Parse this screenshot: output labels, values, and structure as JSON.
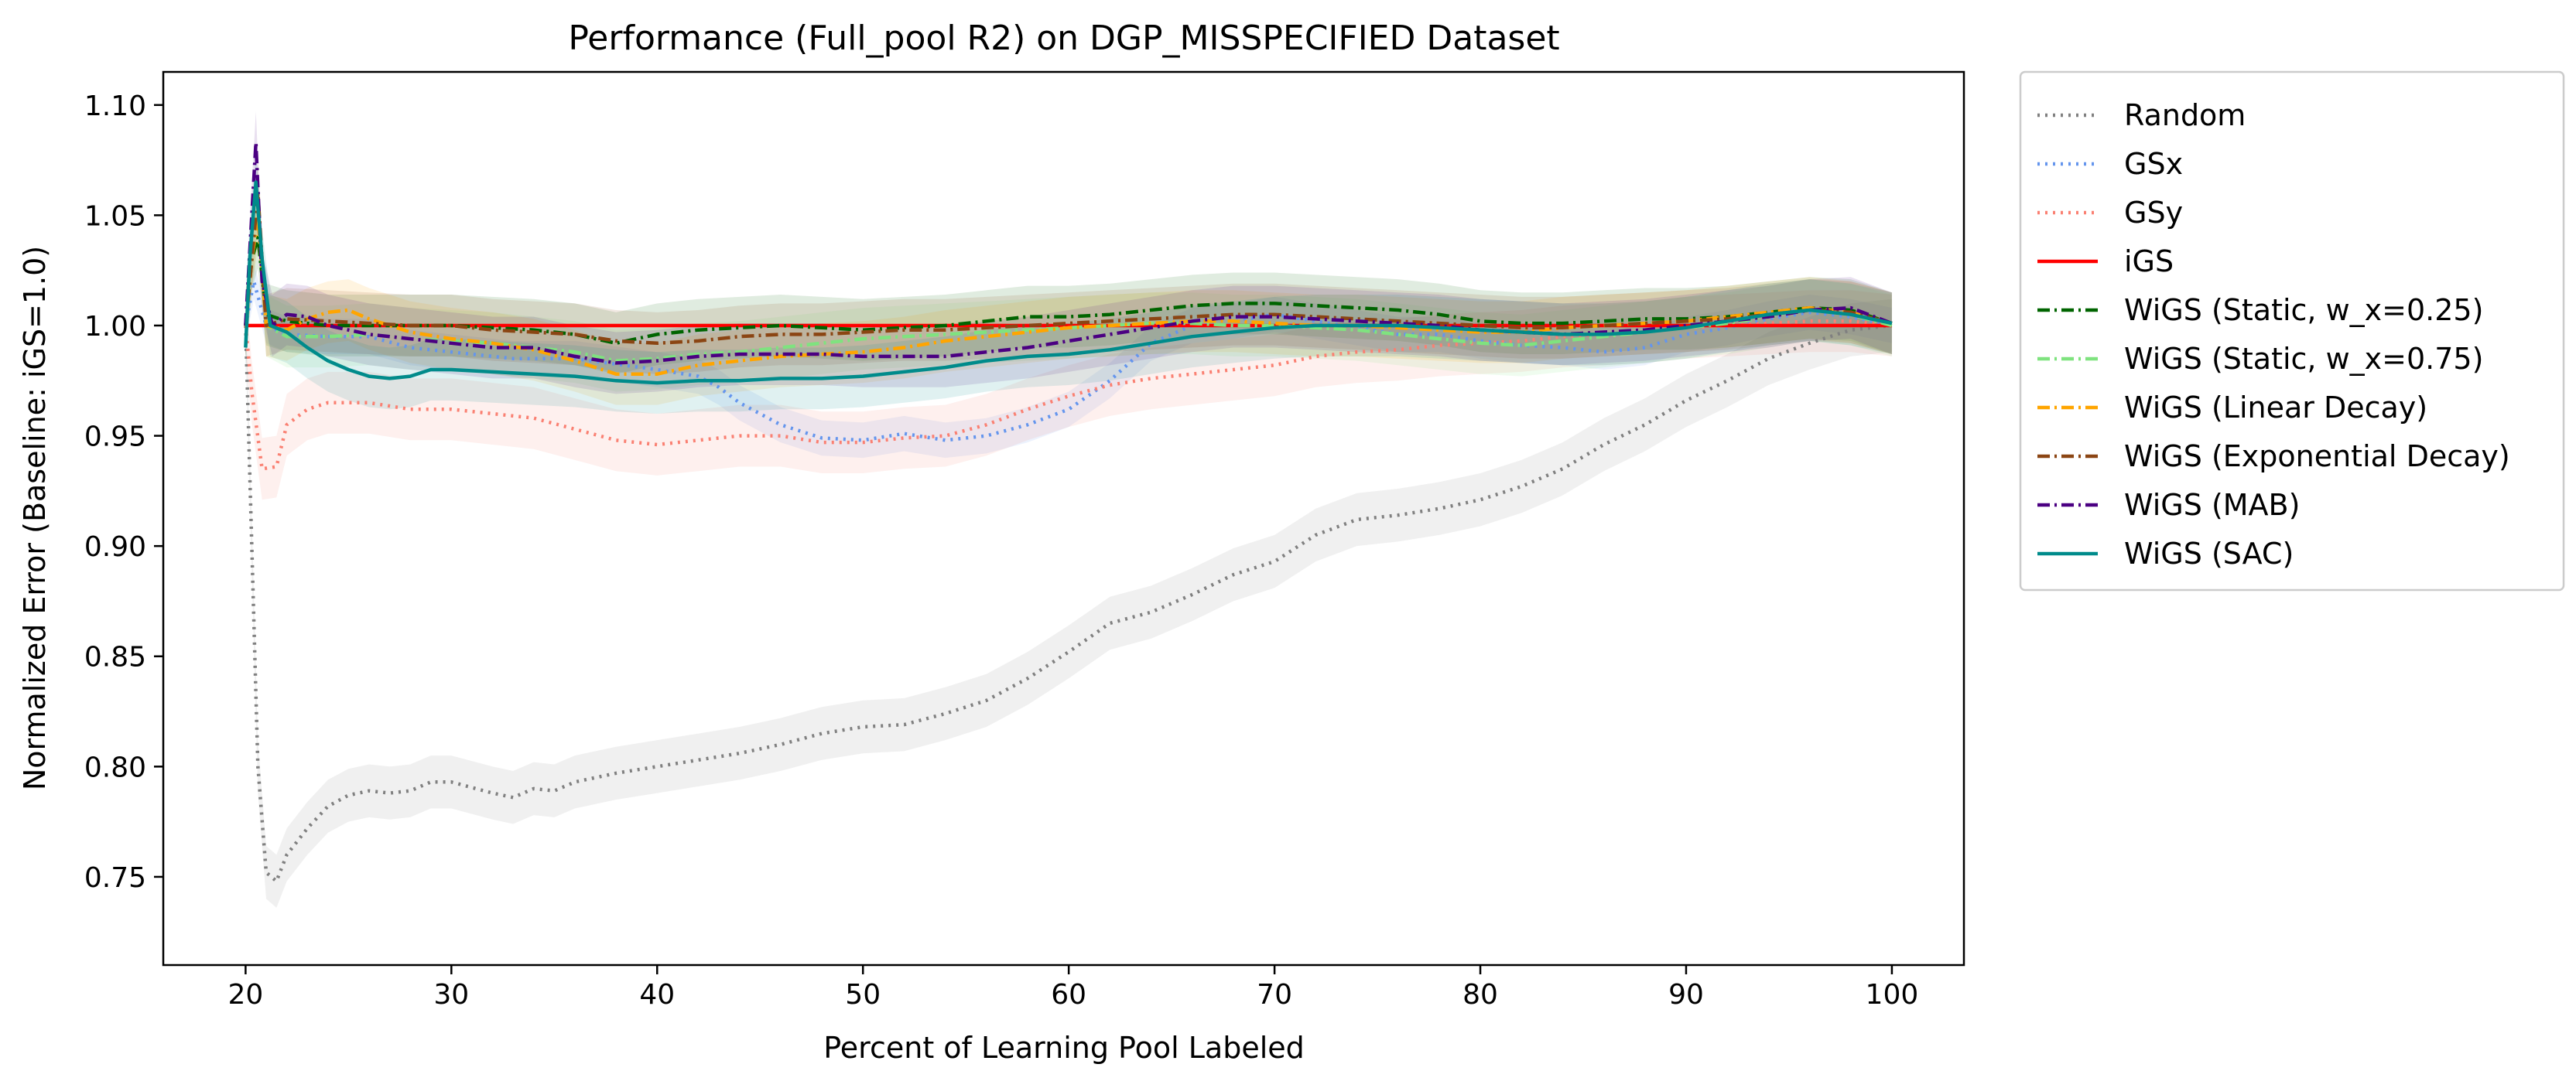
{
  "chart_data": {
    "type": "line",
    "title": "Performance (Full_pool R2) on DGP_MISSPECIFIED Dataset",
    "xlabel": "Percent of Learning Pool Labeled",
    "ylabel": "Normalized Error (Baseline: iGS=1.0)",
    "xlim": [
      16,
      103.5
    ],
    "ylim": [
      0.71,
      1.115
    ],
    "xticks": [
      20,
      30,
      40,
      50,
      60,
      70,
      80,
      90,
      100
    ],
    "xtick_labels": [
      "20",
      "30",
      "40",
      "50",
      "60",
      "70",
      "80",
      "90",
      "100"
    ],
    "yticks": [
      0.75,
      0.8,
      0.85,
      0.9,
      0.95,
      1.0,
      1.05,
      1.1
    ],
    "ytick_labels": [
      "0.75",
      "0.80",
      "0.85",
      "0.90",
      "0.95",
      "1.00",
      "1.05",
      "1.10"
    ],
    "grid": false,
    "legend_position": "outside-right-top",
    "series": [
      {
        "name": "Random",
        "color": "#808080",
        "style": "dotted",
        "band": 0.012,
        "x": [
          20,
          20.3,
          20.6,
          21,
          21.5,
          22,
          23,
          24,
          25,
          26,
          27,
          28,
          29,
          30,
          32,
          33,
          34,
          35,
          36,
          38,
          40,
          42,
          44,
          46,
          48,
          50,
          52,
          54,
          56,
          58,
          60,
          62,
          64,
          66,
          68,
          70,
          72,
          74,
          76,
          78,
          80,
          82,
          84,
          86,
          88,
          90,
          92,
          94,
          96,
          98,
          100
        ],
        "y": [
          1.0,
          0.9,
          0.8,
          0.752,
          0.748,
          0.76,
          0.772,
          0.782,
          0.787,
          0.789,
          0.788,
          0.789,
          0.793,
          0.793,
          0.788,
          0.786,
          0.79,
          0.789,
          0.793,
          0.797,
          0.8,
          0.803,
          0.806,
          0.81,
          0.815,
          0.818,
          0.819,
          0.824,
          0.83,
          0.84,
          0.852,
          0.865,
          0.87,
          0.878,
          0.887,
          0.893,
          0.905,
          0.912,
          0.914,
          0.917,
          0.921,
          0.927,
          0.935,
          0.946,
          0.955,
          0.966,
          0.975,
          0.985,
          0.992,
          0.998,
          1.0
        ]
      },
      {
        "name": "GSx",
        "color": "#6495ed",
        "style": "dotted",
        "band": 0.008,
        "x": [
          20,
          20.4,
          21,
          22,
          24,
          26,
          28,
          30,
          33,
          36,
          40,
          42,
          43,
          44,
          46,
          48,
          50,
          52,
          54,
          56,
          58,
          60,
          62,
          64,
          66,
          68,
          70,
          72,
          74,
          76,
          78,
          80,
          82,
          84,
          86,
          88,
          90,
          92,
          94,
          96,
          98,
          100
        ],
        "y": [
          1.0,
          1.02,
          1.0,
          0.996,
          0.995,
          0.995,
          0.99,
          0.988,
          0.985,
          0.985,
          0.98,
          0.977,
          0.972,
          0.965,
          0.955,
          0.949,
          0.948,
          0.951,
          0.948,
          0.95,
          0.955,
          0.962,
          0.975,
          0.992,
          1.0,
          1.002,
          1.005,
          1.002,
          0.999,
          0.996,
          0.996,
          0.993,
          0.991,
          0.99,
          0.988,
          0.99,
          0.996,
          0.999,
          1.003,
          1.006,
          1.004,
          1.0
        ]
      },
      {
        "name": "GSy",
        "color": "#fa8072",
        "style": "dotted",
        "band": 0.014,
        "x": [
          20,
          20.3,
          20.8,
          21.5,
          22,
          23,
          24,
          26,
          28,
          30,
          32,
          34,
          36,
          38,
          40,
          42,
          44,
          46,
          48,
          50,
          52,
          54,
          56,
          58,
          60,
          62,
          64,
          66,
          68,
          70,
          72,
          74,
          76,
          78,
          80,
          82,
          84,
          86,
          88,
          90,
          92,
          94,
          96,
          98,
          100
        ],
        "y": [
          1.0,
          0.97,
          0.935,
          0.936,
          0.955,
          0.962,
          0.965,
          0.965,
          0.962,
          0.962,
          0.96,
          0.958,
          0.953,
          0.948,
          0.946,
          0.948,
          0.95,
          0.95,
          0.947,
          0.947,
          0.949,
          0.95,
          0.955,
          0.962,
          0.968,
          0.973,
          0.976,
          0.978,
          0.98,
          0.982,
          0.986,
          0.988,
          0.989,
          0.991,
          0.992,
          0.993,
          0.995,
          0.996,
          0.997,
          0.999,
          1.0,
          1.001,
          1.002,
          1.002,
          1.0
        ]
      },
      {
        "name": "iGS",
        "color": "#ff0000",
        "style": "solid",
        "band": 0,
        "x": [
          20,
          100
        ],
        "y": [
          1.0,
          1.0
        ]
      },
      {
        "name": "WiGS (Static, w_x=0.25)",
        "color": "#006400",
        "style": "dashdot",
        "band": 0.014,
        "x": [
          20,
          20.3,
          20.6,
          21,
          22,
          24,
          26,
          28,
          30,
          32,
          34,
          36,
          38,
          40,
          42,
          44,
          46,
          48,
          50,
          52,
          54,
          56,
          58,
          60,
          62,
          64,
          66,
          68,
          70,
          72,
          74,
          76,
          78,
          80,
          82,
          84,
          86,
          88,
          90,
          92,
          94,
          96,
          98,
          100
        ],
        "y": [
          1.0,
          1.03,
          1.04,
          1.005,
          1.002,
          1.0,
          1.0,
          1.0,
          1.0,
          0.999,
          0.998,
          0.996,
          0.992,
          0.996,
          0.998,
          0.999,
          1.0,
          0.999,
          0.998,
          0.999,
          1.0,
          1.002,
          1.004,
          1.004,
          1.005,
          1.007,
          1.009,
          1.01,
          1.01,
          1.009,
          1.008,
          1.007,
          1.005,
          1.002,
          1.001,
          1.001,
          1.002,
          1.003,
          1.003,
          1.004,
          1.006,
          1.008,
          1.007,
          1.001
        ]
      },
      {
        "name": "WiGS (Static, w_x=0.75)",
        "color": "#7fe37f",
        "style": "dashdot",
        "band": 0.014,
        "x": [
          20,
          20.3,
          20.6,
          21,
          22,
          24,
          26,
          28,
          30,
          32,
          34,
          36,
          38,
          40,
          42,
          44,
          46,
          48,
          50,
          52,
          54,
          56,
          58,
          60,
          62,
          64,
          66,
          68,
          70,
          72,
          74,
          76,
          78,
          80,
          82,
          84,
          86,
          88,
          90,
          92,
          94,
          96,
          98,
          100
        ],
        "y": [
          1.0,
          1.03,
          1.05,
          1.0,
          0.995,
          0.995,
          0.996,
          0.994,
          0.993,
          0.992,
          0.99,
          0.988,
          0.984,
          0.985,
          0.987,
          0.988,
          0.99,
          0.992,
          0.994,
          0.995,
          0.996,
          0.997,
          0.998,
          0.999,
          1.0,
          1.001,
          1.001,
          1.0,
          1.0,
          0.999,
          0.998,
          0.996,
          0.994,
          0.992,
          0.991,
          0.993,
          0.995,
          0.997,
          0.999,
          1.001,
          1.004,
          1.007,
          1.005,
          1.0
        ]
      },
      {
        "name": "WiGS (Linear Decay)",
        "color": "#ffa500",
        "style": "dashdot",
        "band": 0.014,
        "x": [
          20,
          20.3,
          20.6,
          21,
          22,
          23,
          24,
          25,
          26,
          28,
          30,
          32,
          34,
          36,
          38,
          40,
          42,
          44,
          46,
          48,
          50,
          52,
          54,
          56,
          58,
          60,
          62,
          64,
          66,
          68,
          70,
          72,
          74,
          76,
          78,
          80,
          82,
          84,
          86,
          88,
          90,
          92,
          94,
          96,
          98,
          100
        ],
        "y": [
          1.0,
          1.03,
          1.05,
          1.0,
          0.998,
          1.003,
          1.006,
          1.007,
          1.003,
          0.997,
          0.994,
          0.992,
          0.989,
          0.984,
          0.978,
          0.978,
          0.982,
          0.984,
          0.986,
          0.987,
          0.988,
          0.99,
          0.993,
          0.995,
          0.997,
          0.999,
          1.0,
          1.001,
          1.002,
          1.002,
          1.001,
          1.0,
          1.0,
          0.999,
          0.998,
          0.997,
          0.997,
          0.999,
          1.0,
          1.001,
          1.002,
          1.004,
          1.006,
          1.008,
          1.006,
          1.001
        ]
      },
      {
        "name": "WiGS (Exponential Decay)",
        "color": "#8b4513",
        "style": "dashdot",
        "band": 0.014,
        "x": [
          20,
          20.3,
          20.6,
          21,
          22,
          24,
          26,
          28,
          30,
          32,
          34,
          36,
          38,
          40,
          42,
          44,
          46,
          48,
          50,
          52,
          54,
          56,
          58,
          60,
          62,
          64,
          66,
          68,
          70,
          72,
          74,
          76,
          78,
          80,
          82,
          84,
          86,
          88,
          90,
          92,
          94,
          96,
          98,
          100
        ],
        "y": [
          1.0,
          1.03,
          1.06,
          1.0,
          1.003,
          1.002,
          1.001,
          1.0,
          1.0,
          0.998,
          0.997,
          0.996,
          0.993,
          0.992,
          0.993,
          0.995,
          0.996,
          0.996,
          0.997,
          0.998,
          0.998,
          0.999,
          1.0,
          1.001,
          1.002,
          1.003,
          1.004,
          1.005,
          1.005,
          1.004,
          1.003,
          1.002,
          1.001,
          1.0,
          0.999,
          0.999,
          1.0,
          1.001,
          1.002,
          1.003,
          1.005,
          1.007,
          1.006,
          1.001
        ]
      },
      {
        "name": "WiGS (MAB)",
        "color": "#4b0082",
        "style": "dashdot",
        "band": 0.014,
        "x": [
          20,
          20.3,
          20.5,
          20.8,
          21.3,
          22,
          23,
          24,
          25,
          26,
          28,
          30,
          32,
          34,
          36,
          38,
          40,
          42,
          44,
          46,
          48,
          50,
          52,
          54,
          56,
          58,
          60,
          62,
          64,
          66,
          68,
          70,
          72,
          74,
          76,
          78,
          80,
          82,
          84,
          86,
          88,
          90,
          92,
          94,
          96,
          98,
          100
        ],
        "y": [
          1.0,
          1.05,
          1.083,
          1.02,
          1.0,
          1.005,
          1.004,
          1.0,
          0.998,
          0.996,
          0.994,
          0.992,
          0.99,
          0.99,
          0.986,
          0.983,
          0.984,
          0.986,
          0.987,
          0.987,
          0.987,
          0.986,
          0.986,
          0.986,
          0.988,
          0.99,
          0.993,
          0.996,
          0.999,
          1.002,
          1.004,
          1.004,
          1.003,
          1.002,
          1.001,
          1.0,
          0.998,
          0.997,
          0.996,
          0.997,
          0.998,
          1.0,
          1.002,
          1.004,
          1.007,
          1.008,
          1.001
        ]
      },
      {
        "name": "WiGS (SAC)",
        "color": "#008b8b",
        "style": "solid",
        "band": 0.014,
        "x": [
          20,
          20.2,
          20.5,
          20.8,
          21.2,
          22,
          23,
          24,
          25,
          26,
          27,
          28,
          29,
          30,
          32,
          34,
          36,
          38,
          40,
          42,
          44,
          46,
          48,
          50,
          52,
          54,
          56,
          58,
          60,
          62,
          64,
          66,
          68,
          70,
          72,
          74,
          76,
          78,
          80,
          82,
          84,
          86,
          88,
          90,
          92,
          94,
          96,
          98,
          100
        ],
        "y": [
          0.99,
          1.03,
          1.065,
          1.03,
          1.0,
          0.997,
          0.99,
          0.984,
          0.98,
          0.977,
          0.976,
          0.977,
          0.98,
          0.98,
          0.979,
          0.978,
          0.977,
          0.975,
          0.974,
          0.975,
          0.975,
          0.976,
          0.976,
          0.977,
          0.979,
          0.981,
          0.984,
          0.986,
          0.987,
          0.989,
          0.992,
          0.995,
          0.997,
          0.999,
          1.0,
          1.0,
          1.0,
          0.999,
          0.998,
          0.997,
          0.996,
          0.996,
          0.997,
          0.999,
          1.002,
          1.005,
          1.007,
          1.005,
          1.001
        ]
      }
    ]
  }
}
